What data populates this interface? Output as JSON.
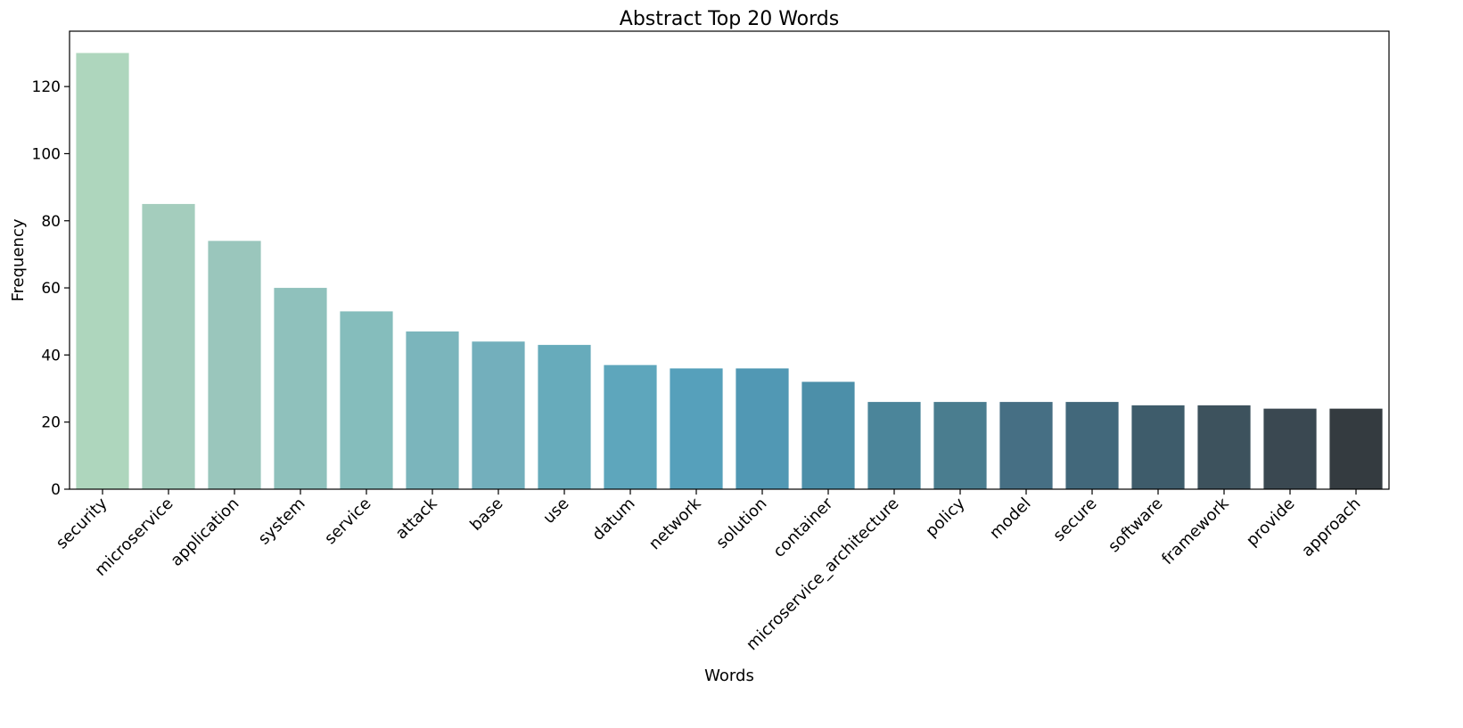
{
  "chart_data": {
    "type": "bar",
    "title": "Abstract Top 20 Words",
    "xlabel": "Words",
    "ylabel": "Frequency",
    "ylim": [
      0,
      136.5
    ],
    "yticks": [
      0,
      20,
      40,
      60,
      80,
      100,
      120
    ],
    "grid": false,
    "legend": "none",
    "categories": [
      "security",
      "microservice",
      "application",
      "system",
      "service",
      "attack",
      "base",
      "use",
      "datum",
      "network",
      "solution",
      "container",
      "microservice_architecture",
      "policy",
      "model",
      "secure",
      "software",
      "framework",
      "provide",
      "approach"
    ],
    "values": [
      130,
      85,
      74,
      60,
      53,
      47,
      44,
      43,
      37,
      36,
      36,
      32,
      26,
      26,
      26,
      26,
      25,
      25,
      24,
      24
    ],
    "colors": [
      "#aed6bd",
      "#a4cdbd",
      "#9ac6bc",
      "#8fc1bc",
      "#85bdbc",
      "#7bb5bc",
      "#73afbc",
      "#67abbb",
      "#5ea6bc",
      "#56a0bb",
      "#5198b4",
      "#4c8fa9",
      "#4b859a",
      "#4a7d8f",
      "#466f84",
      "#42687b",
      "#3e5c6b",
      "#3d525d",
      "#3a4851",
      "#343b40"
    ]
  }
}
